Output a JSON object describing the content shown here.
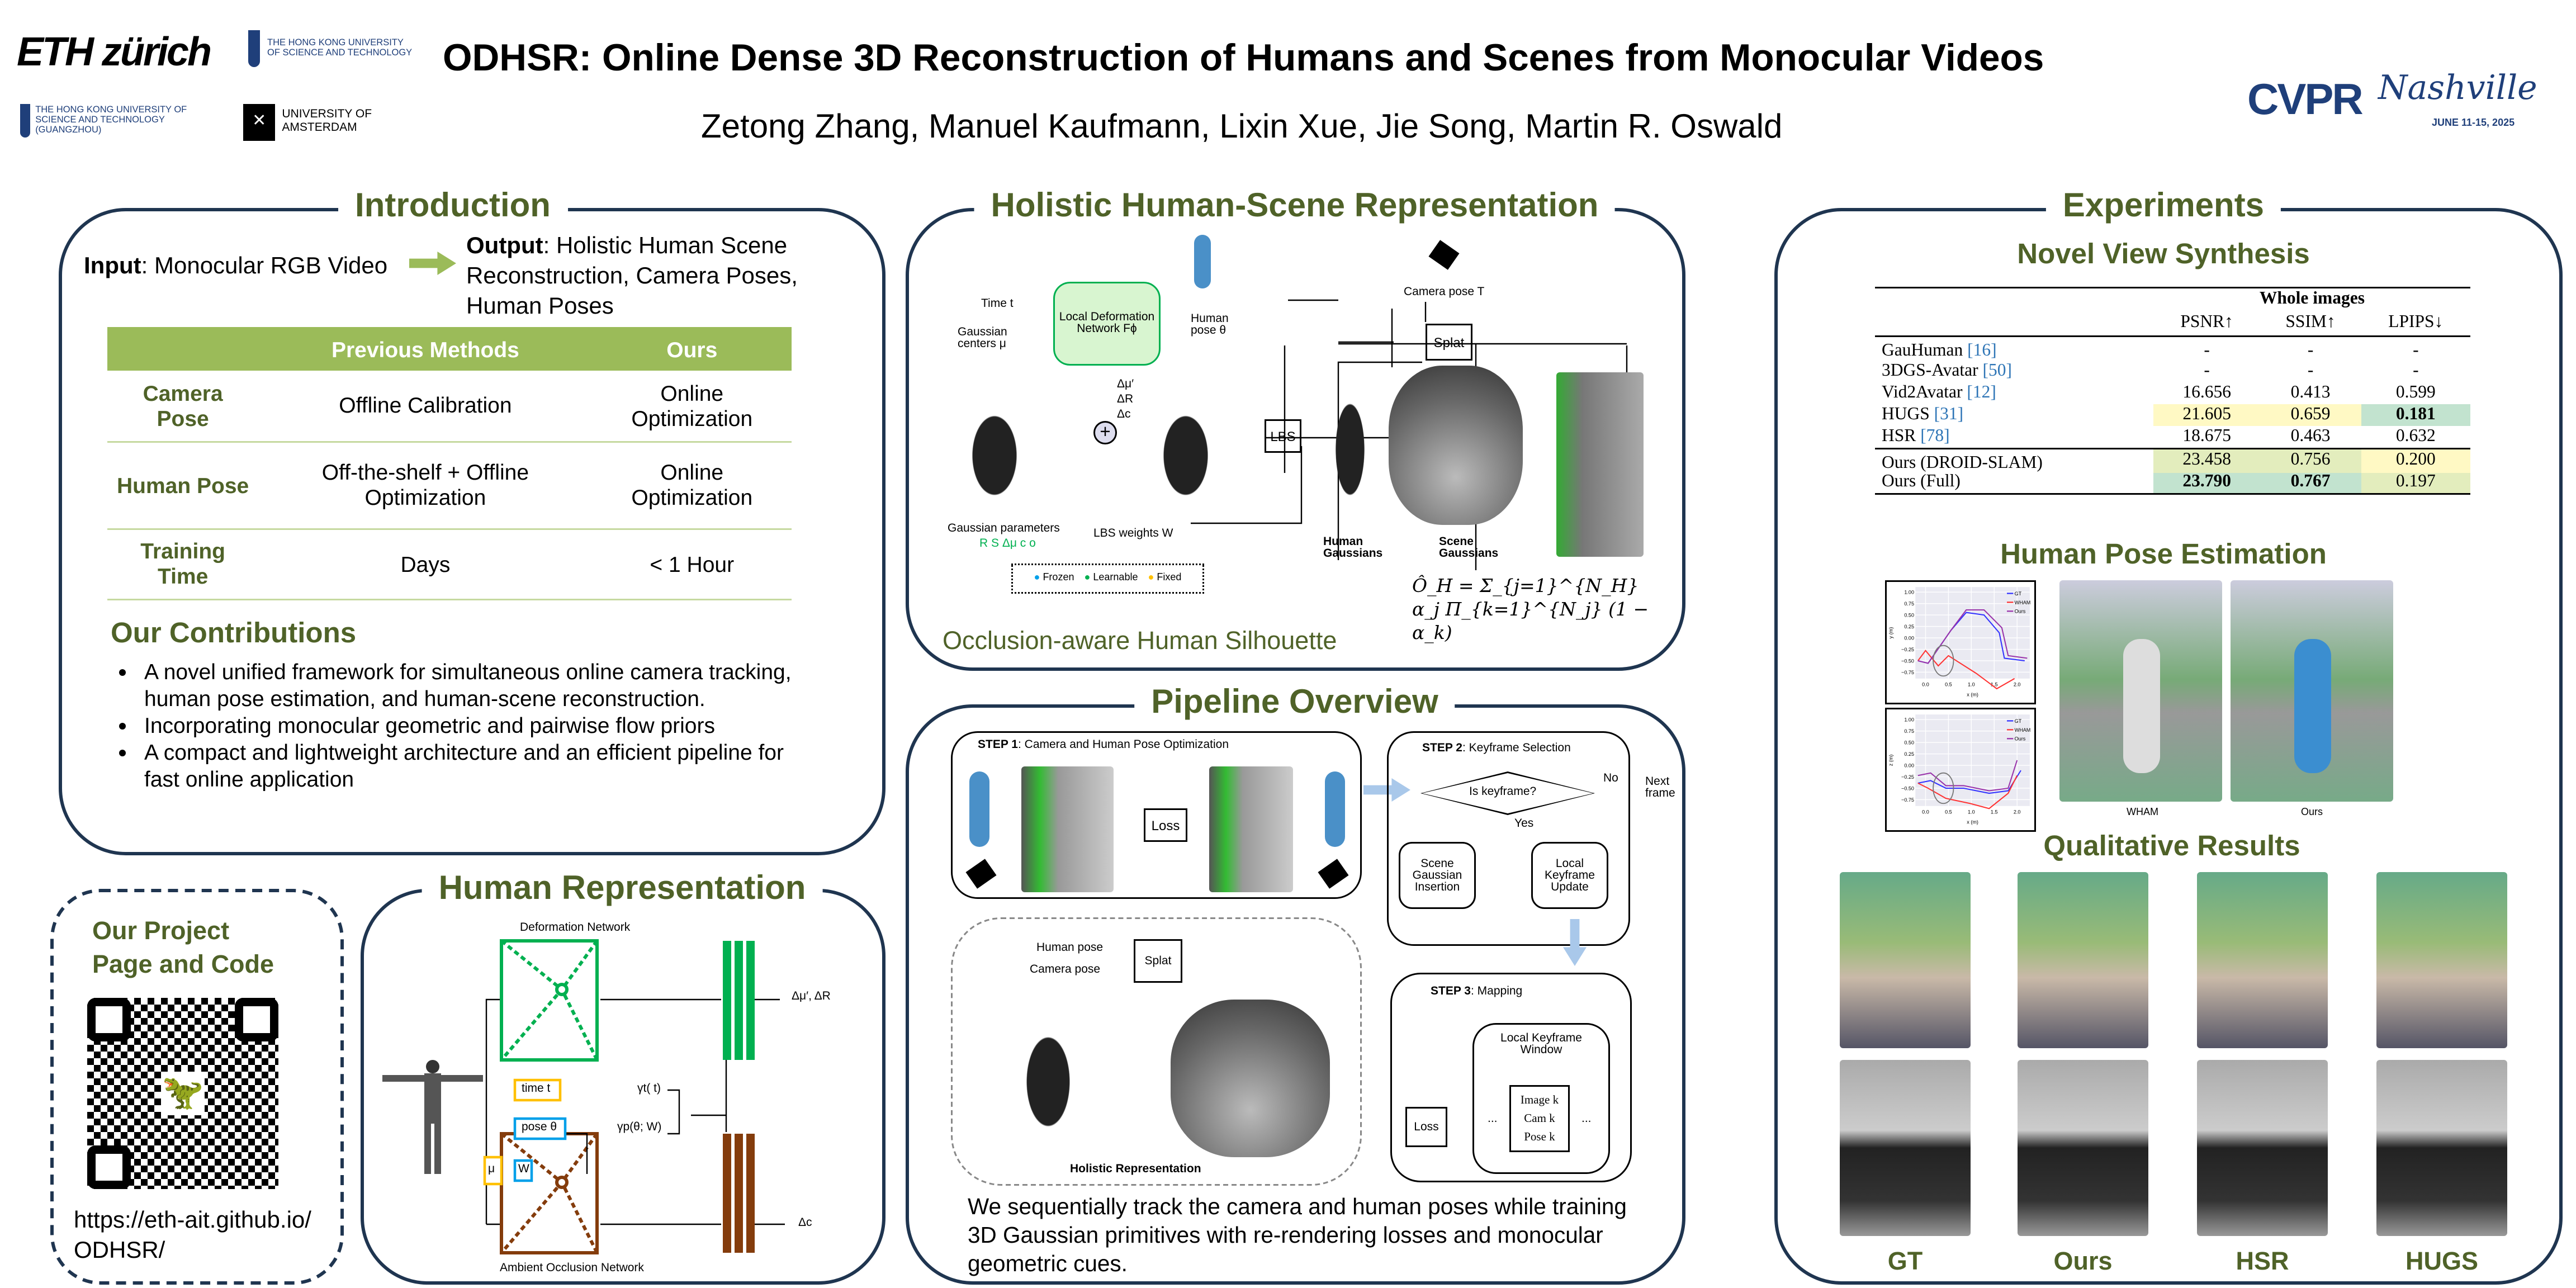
{
  "header": {
    "title": "ODHSR: Online Dense 3D Reconstruction of Humans and Scenes from Monocular Videos",
    "authors": "Zetong Zhang, Manuel Kaufmann, Lixin Xue, Jie Song, Martin R. Oswald",
    "logos": {
      "eth": "ETH zürich",
      "hkust": "THE HONG KONG UNIVERSITY OF SCIENCE AND TECHNOLOGY",
      "hkust_gz": "THE HONG KONG UNIVERSITY OF SCIENCE AND TECHNOLOGY (GUANGZHOU)",
      "uva": "UNIVERSITY OF AMSTERDAM",
      "cvpr": "CVPR",
      "cvpr_script": "Nashville",
      "cvpr_dates": "JUNE 11-15, 2025"
    }
  },
  "colors": {
    "section_title": "#4f6228",
    "border": "#1f3550",
    "table_header": "#9bbb59"
  },
  "introduction": {
    "title": "Introduction",
    "input_label": "Input",
    "input_text": ": Monocular RGB Video",
    "output_label": "Output",
    "output_text": ": Holistic Human Scene Reconstruction, Camera Poses, Human Poses",
    "table": {
      "headers": [
        "",
        "Previous Methods",
        "Ours"
      ],
      "rows": [
        [
          "Camera Pose",
          "Offline Calibration",
          "Online Optimization"
        ],
        [
          "Human Pose",
          "Off-the-shelf + Offline Optimization",
          "Online Optimization"
        ],
        [
          "Training Time",
          "Days",
          "< 1 Hour"
        ]
      ]
    },
    "contributions_title": "Our Contributions",
    "contributions": [
      "A novel unified framework for simultaneous online camera tracking, human pose estimation, and human-scene reconstruction.",
      "Incorporating monocular geometric and pairwise flow priors",
      "A compact and lightweight architecture and an efficient pipeline for fast online application"
    ]
  },
  "project": {
    "title": "Our Project Page and Code",
    "url": "https://eth-ait.github.io/ODHSR/"
  },
  "human_representation": {
    "title": "Human Representation",
    "deformation_network": "Deformation Network",
    "ao_network": "Ambient Occlusion Network",
    "mu": "μ",
    "time": "time t",
    "pose": "pose θ",
    "w": "W",
    "gamma_t": "γt( t)",
    "gamma_p": "γp(θ; W)",
    "out_top": "Δμ′, ΔR",
    "out_bottom": "Δc"
  },
  "holistic": {
    "title": "Holistic Human-Scene Representation",
    "time": "Time t",
    "centers": "Gaussian centers μ",
    "network": "Local Deformation Network Fϕ",
    "human_pose": "Human pose θ",
    "deltas": "Δμ′ ΔR Δc",
    "lbs": "LBS",
    "camera_pose": "Camera pose T",
    "splat": "Splat",
    "gaussian_params": "Gaussian parameters",
    "gaussian_params_sym": "R S Δμ c o",
    "lbs_weights": "LBS weights W",
    "human_gaussians": "Human Gaussians",
    "scene_gaussians": "Scene Gaussians",
    "legend": [
      {
        "label": "Frozen",
        "color": "#00a0e9"
      },
      {
        "label": "Learnable",
        "color": "#00b050"
      },
      {
        "label": "Fixed",
        "color": "#ffc000"
      }
    ],
    "silhouette_title": "Occlusion-aware Human Silhouette",
    "formula": "Ô_H = Σ_{j=1}^{N_H} α_j Π_{k=1}^{N_j} (1 − α_k)"
  },
  "pipeline": {
    "title": "Pipeline Overview",
    "step1_bold": "STEP 1",
    "step1": ": Camera and  Human Pose Optimization",
    "loss": "Loss",
    "step2_bold": "STEP 2",
    "step2": ": Keyframe Selection",
    "is_keyframe": "Is keyframe?",
    "no": "No",
    "yes": "Yes",
    "next_frame": "Next frame",
    "scene_insertion": "Scene Gaussian Insertion",
    "keyframe_update": "Local Keyframe Update",
    "human_pose": "Human pose",
    "camera_pose": "Camera pose",
    "splat": "Splat",
    "holistic": "Holistic Representation",
    "step3_bold": "STEP 3",
    "step3": ": Mapping",
    "window": "Local  Keyframe Window",
    "window_items": [
      "Image k",
      "Cam k",
      "Pose k"
    ],
    "ellipsis": "...",
    "caption": "We sequentially track the camera and human poses while training 3D Gaussian primitives with re-rendering losses and monocular geometric cues."
  },
  "experiments": {
    "title": "Experiments",
    "nvs_title": "Novel View Synthesis",
    "table": {
      "group_header": "Whole images",
      "headers": [
        "PSNR↑",
        "SSIM↑",
        "LPIPS↓"
      ],
      "rows": [
        {
          "method": "GauHuman",
          "ref": "[16]",
          "values": [
            "-",
            "-",
            "-"
          ],
          "hl": [
            "",
            "",
            ""
          ]
        },
        {
          "method": "3DGS-Avatar",
          "ref": "[50]",
          "values": [
            "-",
            "-",
            "-"
          ],
          "hl": [
            "",
            "",
            ""
          ]
        },
        {
          "method": "Vid2Avatar",
          "ref": "[12]",
          "values": [
            "16.656",
            "0.413",
            "0.599"
          ],
          "hl": [
            "",
            "",
            ""
          ]
        },
        {
          "method": "HUGS",
          "ref": "[31]",
          "values": [
            "21.605",
            "0.659",
            "0.181"
          ],
          "hl": [
            "y",
            "y",
            "g"
          ],
          "bold": [
            false,
            false,
            true
          ]
        },
        {
          "method": "HSR",
          "ref": "[78]",
          "values": [
            "18.675",
            "0.463",
            "0.632"
          ],
          "hl": [
            "",
            "",
            ""
          ]
        }
      ],
      "ours_rows": [
        {
          "method": "Ours (DROID-SLAM)",
          "values": [
            "23.458",
            "0.756",
            "0.200"
          ],
          "hl": [
            "lg",
            "lg",
            "y"
          ],
          "bold": [
            false,
            false,
            false
          ]
        },
        {
          "method": "Ours (Full)",
          "values": [
            "23.790",
            "0.767",
            "0.197"
          ],
          "hl": [
            "g",
            "g",
            "lg"
          ],
          "bold": [
            true,
            true,
            false
          ]
        }
      ]
    },
    "hpe_title": "Human Pose Estimation",
    "plots": [
      {
        "ylabel": "y (m)",
        "xlabel": "x (m)",
        "yticks": [
          "1.00",
          "0.75",
          "0.50",
          "0.25",
          "0.00",
          "−0.25",
          "−0.50",
          "−0.75"
        ],
        "xticks": [
          "0.0",
          "0.5",
          "1.0",
          "1.5",
          "2.0"
        ],
        "legend": [
          "GT",
          "WHAM",
          "Ours"
        ]
      },
      {
        "ylabel": "z (m)",
        "xlabel": "x (m)",
        "yticks": [
          "1.00",
          "0.75",
          "0.50",
          "0.25",
          "0.00",
          "−0.25",
          "−0.50",
          "−0.75"
        ],
        "xticks": [
          "0.0",
          "0.5",
          "1.0",
          "1.5",
          "2.0"
        ],
        "legend": [
          "GT",
          "WHAM",
          "Ours"
        ]
      }
    ],
    "legend_colors": [
      "#3333ff",
      "#ff3333",
      "#9933aa"
    ],
    "pose_images": [
      "WHAM",
      "Ours"
    ],
    "qual_title": "Qualitative Results",
    "qual_columns": [
      "GT",
      "Ours",
      "HSR",
      "HUGS"
    ]
  }
}
